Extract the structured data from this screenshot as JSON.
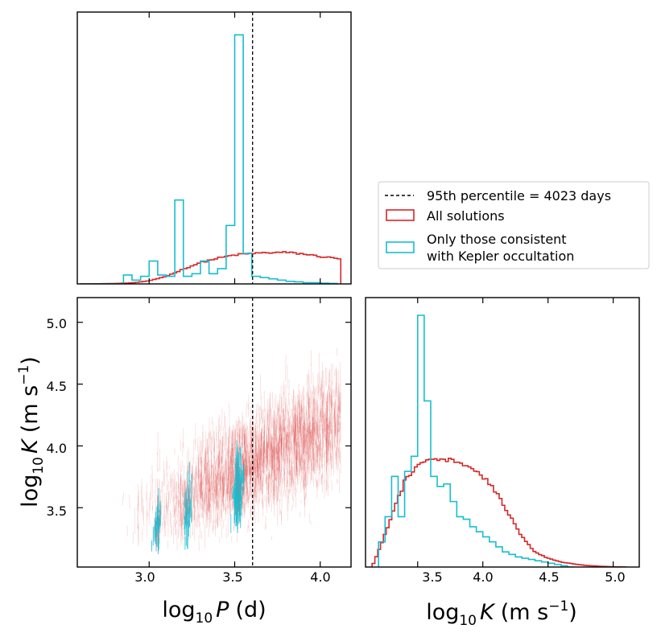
{
  "colors": {
    "all": "#d62728",
    "kepler": "#17becf",
    "vline": "#000000"
  },
  "chart_data": [
    {
      "type": "step-histogram",
      "panel": "top",
      "x_range": [
        2.58,
        4.18
      ],
      "x_ticks": [
        3.0,
        3.5,
        4.0
      ],
      "vline": 3.6045,
      "bins_all": {
        "edges": [
          2.6,
          4.12
        ],
        "n": 76
      },
      "all_solutions_curve": [
        [
          2.6,
          0.0
        ],
        [
          2.8,
          0.0015
        ],
        [
          2.9,
          0.004
        ],
        [
          3.0,
          0.012
        ],
        [
          3.1,
          0.03
        ],
        [
          3.2,
          0.058
        ],
        [
          3.3,
          0.084
        ],
        [
          3.4,
          0.101
        ],
        [
          3.5,
          0.114
        ],
        [
          3.6,
          0.12
        ],
        [
          3.7,
          0.123
        ],
        [
          3.8,
          0.124
        ],
        [
          3.9,
          0.118
        ],
        [
          4.0,
          0.108
        ],
        [
          4.1,
          0.1
        ],
        [
          4.12,
          0.1
        ]
      ],
      "kepler_hist": {
        "edges": [
          2.6,
          2.65,
          2.7,
          2.75,
          2.8,
          2.85,
          2.9,
          2.95,
          3.0,
          3.05,
          3.1,
          3.15,
          3.2,
          3.25,
          3.3,
          3.35,
          3.4,
          3.45,
          3.5,
          3.55,
          3.6,
          3.65,
          3.7,
          3.75,
          3.8,
          3.85,
          3.9,
          3.95,
          4.0,
          4.05,
          4.1
        ],
        "values": [
          0.0,
          0.0,
          0.0,
          0.0,
          0.0,
          0.035,
          0.015,
          0.03,
          0.09,
          0.035,
          0.03,
          0.33,
          0.03,
          0.04,
          0.09,
          0.04,
          0.06,
          0.23,
          0.98,
          0.12,
          0.03,
          0.025,
          0.02,
          0.015,
          0.01,
          0.008,
          0.005,
          0.005,
          0.003,
          0.002
        ]
      }
    },
    {
      "type": "scatter-density",
      "panel": "main",
      "x_range": [
        2.58,
        4.18
      ],
      "y_range": [
        3.02,
        5.2
      ],
      "x_ticks": [
        3.0,
        3.5,
        4.0
      ],
      "y_ticks": [
        3.5,
        4.0,
        4.5,
        5.0
      ],
      "xlabel_prefix": "log",
      "xlabel_sub": "10",
      "xlabel_var": "P",
      "xlabel_unit": "(d)",
      "ylabel_prefix": "log",
      "ylabel_sub": "10",
      "ylabel_var": "K",
      "ylabel_unit": "(m s",
      "ylabel_sup": "−1",
      "ylabel_close": ")",
      "relation": {
        "slope": 0.65,
        "intercept_at_3": 3.4
      },
      "kepler_clusters": [
        3.05,
        3.22,
        3.52
      ]
    },
    {
      "type": "step-histogram",
      "panel": "right",
      "x_range": [
        3.1,
        5.2
      ],
      "x_ticks": [
        3.5,
        4.0,
        4.5,
        5.0
      ],
      "xlabel_prefix": "log",
      "xlabel_sub": "10",
      "xlabel_var": "K",
      "xlabel_unit": "(m s",
      "xlabel_sup": "−1",
      "xlabel_close": ")",
      "kepler_hist": {
        "edges": [
          3.2,
          3.25,
          3.3,
          3.35,
          3.4,
          3.45,
          3.5,
          3.55,
          3.6,
          3.65,
          3.7,
          3.75,
          3.8,
          3.85,
          3.9,
          3.95,
          4.0,
          4.05,
          4.1,
          4.15,
          4.2,
          4.25,
          4.3,
          4.35,
          4.4,
          4.45,
          4.5,
          4.55,
          4.6,
          4.65,
          4.7
        ],
        "values": [
          0.1,
          0.2,
          0.36,
          0.2,
          0.38,
          0.44,
          1.0,
          0.66,
          0.36,
          0.32,
          0.33,
          0.26,
          0.2,
          0.19,
          0.16,
          0.14,
          0.12,
          0.1,
          0.08,
          0.06,
          0.05,
          0.04,
          0.035,
          0.03,
          0.025,
          0.02,
          0.015,
          0.01,
          0.005,
          0.0
        ]
      },
      "all_solutions_curve": [
        [
          3.15,
          0.0
        ],
        [
          3.22,
          0.09
        ],
        [
          3.3,
          0.2
        ],
        [
          3.4,
          0.34
        ],
        [
          3.5,
          0.4
        ],
        [
          3.6,
          0.44
        ],
        [
          3.7,
          0.43
        ],
        [
          3.8,
          0.42
        ],
        [
          3.9,
          0.4
        ],
        [
          4.0,
          0.36
        ],
        [
          4.1,
          0.3
        ],
        [
          4.2,
          0.21
        ],
        [
          4.3,
          0.12
        ],
        [
          4.4,
          0.06
        ],
        [
          4.5,
          0.035
        ],
        [
          4.6,
          0.02
        ],
        [
          4.7,
          0.012
        ],
        [
          4.8,
          0.006
        ],
        [
          4.9,
          0.003
        ],
        [
          5.0,
          0.001
        ],
        [
          5.1,
          0.0
        ]
      ]
    }
  ],
  "legend": {
    "entries": [
      {
        "label": "95th percentile = 4023 days"
      },
      {
        "label": "All solutions"
      },
      {
        "label_line1": "Only those consistent",
        "label_line2": "with Kepler occultation"
      }
    ]
  },
  "tick_labels": {
    "main_x": [
      "3.0",
      "3.5",
      "4.0"
    ],
    "main_y": [
      "3.5",
      "4.0",
      "4.5",
      "5.0"
    ],
    "right_x": [
      "3.5",
      "4.0",
      "4.5",
      "5.0"
    ]
  }
}
